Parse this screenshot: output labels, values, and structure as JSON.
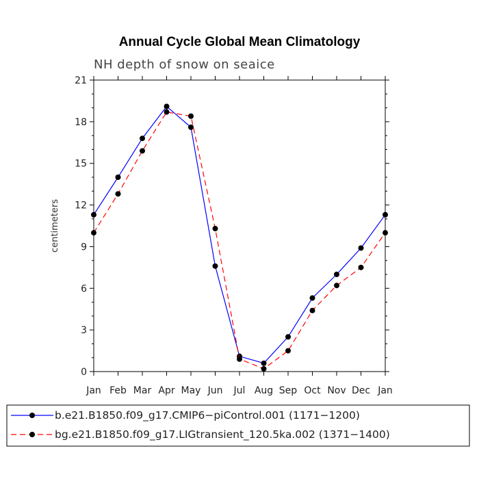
{
  "chart_data": {
    "type": "line",
    "title": "Annual Cycle Global Mean Climatology",
    "subtitle": "NH depth of snow on seaice",
    "xlabel": "",
    "ylabel": "centimeters",
    "categories": [
      "Jan",
      "Feb",
      "Mar",
      "Apr",
      "May",
      "Jun",
      "Jul",
      "Aug",
      "Sep",
      "Oct",
      "Nov",
      "Dec",
      "Jan"
    ],
    "ylim": [
      0,
      21
    ],
    "yticks": [
      0,
      3,
      6,
      9,
      12,
      15,
      18,
      21
    ],
    "grid": false,
    "legend_position": "bottom",
    "series": [
      {
        "name": "b.e21.B1850.f09_g17.CMIP6−piControl.001 (1171−1200)",
        "color": "#0000ff",
        "dash": "solid",
        "values": [
          11.3,
          14.0,
          16.8,
          19.1,
          17.6,
          7.6,
          1.1,
          0.6,
          2.5,
          5.3,
          7.0,
          8.9,
          11.3
        ]
      },
      {
        "name": "bg.e21.B1850.f09_g17.LIGtransient_120.5ka.002 (1371−1400)",
        "color": "#ff0000",
        "dash": "dashed",
        "values": [
          10.0,
          12.8,
          15.9,
          18.7,
          18.4,
          10.3,
          0.9,
          0.2,
          1.5,
          4.4,
          6.2,
          7.5,
          10.0
        ]
      }
    ]
  }
}
